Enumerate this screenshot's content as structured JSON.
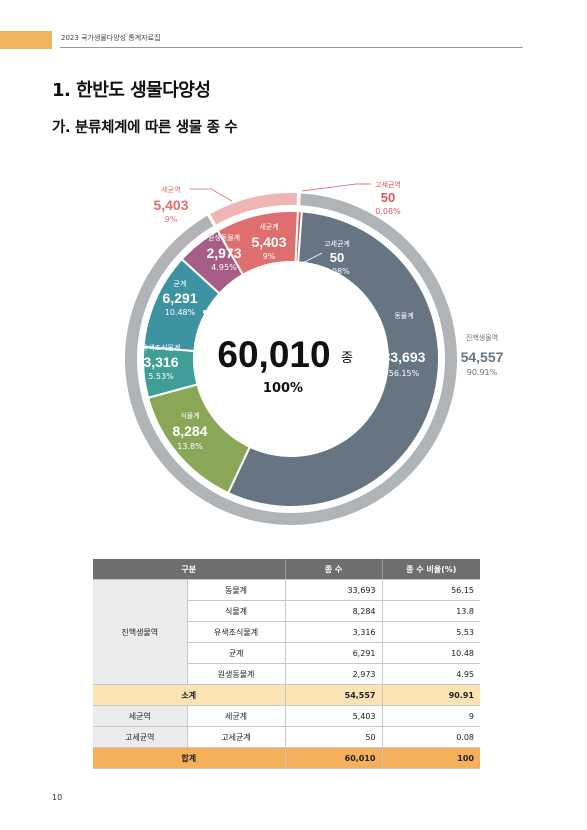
{
  "header": {
    "text": "2023 국가생물다양성 통계자료집"
  },
  "heading1": "1. 한반도 생물다양성",
  "heading2": "가. 분류체계에 따른 생물 종 수",
  "chart": {
    "center_value": "60,010",
    "center_unit": "종",
    "center_percent": "100%",
    "colors": {
      "animal": "#667581",
      "plant": "#8aa757",
      "chromista": "#3f9f96",
      "fungi": "#3e93a2",
      "protozoa": "#a65d86",
      "bacteria": "#df6e6e",
      "archaea": "#c45a5a",
      "outer_eukaryota": "#b1b4b7",
      "outer_bacteria": "#efb4b4"
    },
    "labels": {
      "animal": {
        "name": "동물계",
        "value": "33,693",
        "pct": "56.15%"
      },
      "plant": {
        "name": "식물계",
        "value": "8,284",
        "pct": "13.8%"
      },
      "chromista": {
        "name": "유색조식물계",
        "value": "3,316",
        "pct": "5.53%"
      },
      "fungi": {
        "name": "균계",
        "value": "6,291",
        "pct": "10.48%"
      },
      "protozoa": {
        "name": "원생동물계",
        "value": "2,973",
        "pct": "4.95%"
      },
      "bacteria": {
        "name": "세균계",
        "value": "5,403",
        "pct": "9%"
      },
      "archaea": {
        "name": "고세균계",
        "value": "50",
        "pct": "0.08%"
      },
      "eukaryota_domain": {
        "name": "진핵생물역",
        "value": "54,557",
        "pct": "90.91%"
      },
      "bacteria_domain": {
        "name": "세균역",
        "value": "5,403",
        "pct": "9%"
      },
      "archaea_domain": {
        "name": "고세균역",
        "value": "50",
        "pct": "0.08%"
      }
    }
  },
  "table": {
    "headers": [
      "구분",
      "종 수",
      "종 수 비율(%)"
    ],
    "group_eukaryota": "진핵생물역",
    "rows": [
      {
        "name": "동물계",
        "count": "33,693",
        "ratio": "56.15"
      },
      {
        "name": "식물계",
        "count": "8,284",
        "ratio": "13.8"
      },
      {
        "name": "유색조식물계",
        "count": "3,316",
        "ratio": "5.53"
      },
      {
        "name": "균계",
        "count": "6,291",
        "ratio": "10.48"
      },
      {
        "name": "원생동물계",
        "count": "2,973",
        "ratio": "4.95"
      }
    ],
    "subtotal": {
      "label": "소계",
      "count": "54,557",
      "ratio": "90.91"
    },
    "bacteria": {
      "domain": "세균역",
      "name": "세균계",
      "count": "5,403",
      "ratio": "9"
    },
    "archaea": {
      "domain": "고세균역",
      "name": "고세균계",
      "count": "50",
      "ratio": "0.08"
    },
    "total": {
      "label": "합계",
      "count": "60,010",
      "ratio": "100"
    }
  },
  "page_number": "10"
}
